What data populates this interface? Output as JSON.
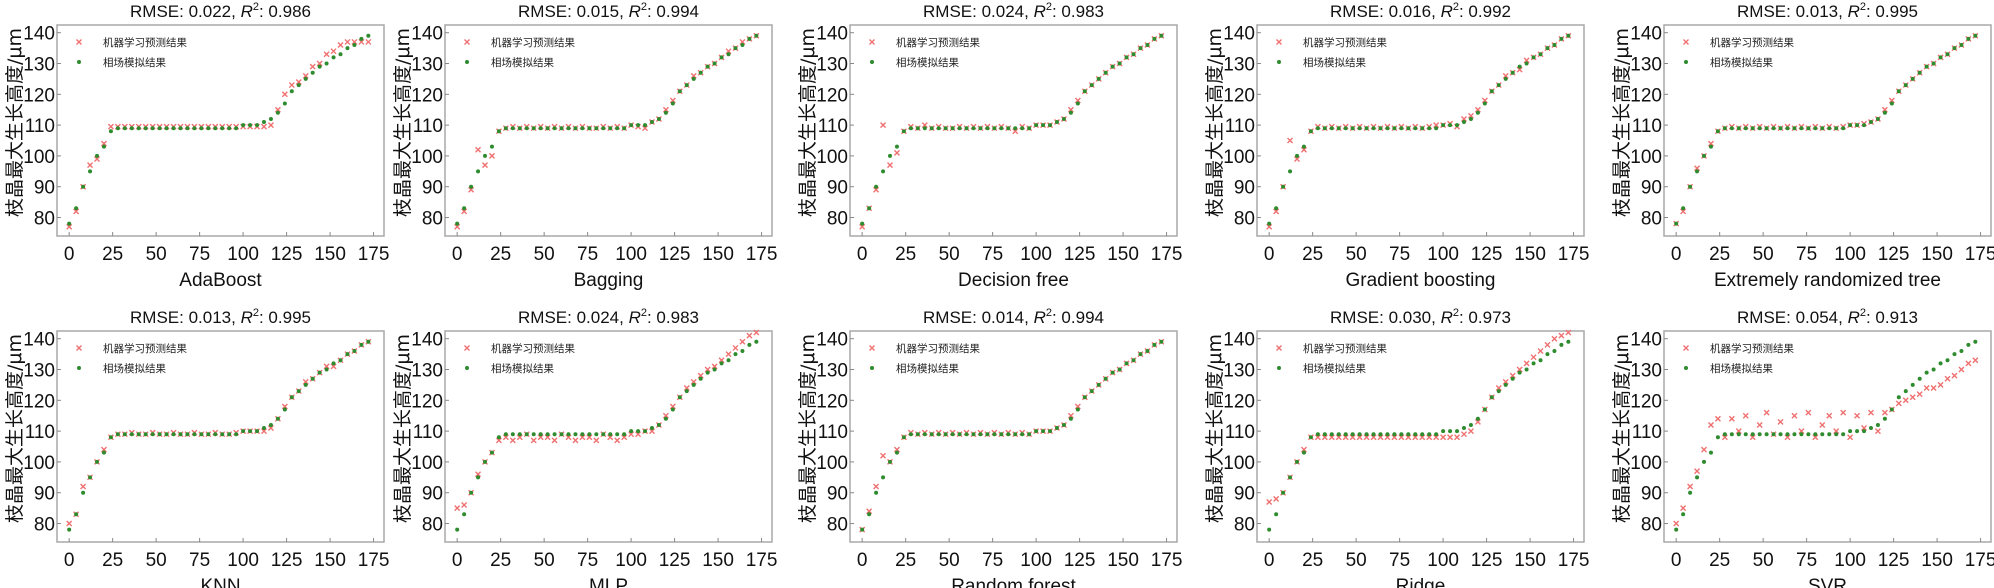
{
  "colors": {
    "prediction": "#f07070",
    "phase_field": "#2e8b2e",
    "frame": "#a8a8a8"
  },
  "chart_data": {
    "type": "scatter",
    "ylabel": "枝晶最大生长高度/μm",
    "legend": [
      "机器学习预测结果",
      "相场模拟结果"
    ],
    "legend_placement": "top-left",
    "xlim": [
      -7,
      181
    ],
    "ylim": [
      74,
      142.5
    ],
    "xticks": [
      "0",
      "25",
      "50",
      "75",
      "100",
      "125",
      "150",
      "175"
    ],
    "yticks": [
      "80",
      "90",
      "100",
      "110",
      "120",
      "130",
      "140"
    ],
    "x": [
      0,
      4,
      8,
      12,
      16,
      20,
      24,
      28,
      32,
      36,
      40,
      44,
      48,
      52,
      56,
      60,
      64,
      68,
      72,
      76,
      80,
      84,
      88,
      92,
      96,
      100,
      104,
      108,
      112,
      116,
      120,
      124,
      128,
      132,
      136,
      140,
      144,
      148,
      152,
      156,
      160,
      164,
      168,
      172
    ],
    "phase_field": [
      78,
      83,
      90,
      95,
      100,
      103,
      108,
      109,
      109,
      109,
      109,
      109,
      109,
      109,
      109,
      109,
      109,
      109,
      109,
      109,
      109,
      109,
      109,
      109,
      109,
      110,
      110,
      110,
      111,
      112,
      114,
      117,
      121,
      123,
      125,
      127,
      129,
      130,
      132,
      133,
      135,
      136,
      138,
      139
    ],
    "panels": [
      {
        "title": "RMSE: 0.022, R²: 0.986",
        "xlabel": "AdaBoost",
        "prediction": [
          77,
          82,
          90,
          97,
          99,
          104,
          109.5,
          109.5,
          109.5,
          109.5,
          109.5,
          109.5,
          109.5,
          109.5,
          109.5,
          109.5,
          109.5,
          109.5,
          109.5,
          109.5,
          109.5,
          109.5,
          109.5,
          109.5,
          109.5,
          109.5,
          109.5,
          109.5,
          109.5,
          110,
          115,
          120,
          123,
          124,
          126,
          129,
          130,
          133,
          134,
          136,
          137,
          137,
          137,
          137
        ]
      },
      {
        "title": "RMSE: 0.015, R²: 0.994",
        "xlabel": "Bagging",
        "prediction": [
          77,
          82,
          89,
          102,
          97,
          100,
          108,
          109,
          109.5,
          109,
          109.5,
          109,
          109.5,
          109,
          109.5,
          109,
          109.5,
          109,
          109.5,
          109,
          109,
          109.5,
          109,
          109.5,
          109,
          110,
          109.5,
          109,
          111,
          112,
          115,
          118,
          121,
          123,
          126,
          127,
          129,
          130,
          132,
          134,
          135,
          137,
          138,
          139
        ]
      },
      {
        "title": "RMSE: 0.024, R²: 0.983",
        "xlabel": "Decision free",
        "prediction": [
          77,
          83,
          89,
          110,
          97,
          101,
          108,
          109.5,
          109,
          110,
          109,
          109.5,
          109,
          109,
          109.5,
          109,
          109.5,
          109,
          109.5,
          109,
          109.5,
          109,
          108,
          109.5,
          109,
          110,
          110,
          110,
          111,
          112,
          115,
          118,
          121,
          123,
          125,
          127,
          129,
          130,
          132,
          133,
          135,
          136,
          138,
          139
        ]
      },
      {
        "title": "RMSE: 0.016, R²: 0.992",
        "xlabel": "Gradient boosting",
        "prediction": [
          77,
          82,
          90,
          105,
          99,
          102,
          108,
          109.5,
          109,
          109.5,
          109,
          109.5,
          109,
          109.5,
          109,
          109.5,
          109,
          109.5,
          109,
          109.5,
          109,
          109.5,
          109,
          109.5,
          110,
          110,
          110.5,
          109.5,
          112,
          113,
          115,
          118,
          121,
          123,
          126,
          127,
          128,
          131,
          132,
          133,
          135,
          136,
          138,
          139
        ]
      },
      {
        "title": "RMSE: 0.013, R²: 0.995",
        "xlabel": "Extremely randomized tree",
        "prediction": [
          78,
          82,
          90,
          96,
          100,
          104,
          108,
          109,
          109.5,
          109,
          109.5,
          109,
          109.5,
          109,
          109.5,
          109,
          109.5,
          109,
          109.5,
          109,
          109.5,
          109,
          109.5,
          109,
          109.5,
          110,
          110,
          110.5,
          111,
          112,
          115,
          118,
          121,
          123,
          125,
          127,
          129,
          130,
          132,
          133,
          135,
          136,
          138,
          139
        ]
      },
      {
        "title": "RMSE: 0.013, R²: 0.995",
        "xlabel": "KNN",
        "prediction": [
          80,
          83,
          92,
          95,
          100,
          104,
          108,
          109,
          109,
          109.5,
          109,
          109,
          109.5,
          109,
          109,
          109.5,
          109,
          109,
          109.5,
          109,
          109,
          109.5,
          109,
          109,
          109.5,
          110,
          110,
          110,
          110,
          111,
          114,
          118,
          121,
          123,
          126,
          127,
          129,
          131,
          131,
          133,
          135,
          136,
          138,
          139
        ]
      },
      {
        "title": "RMSE: 0.024, R²: 0.983",
        "xlabel": "MLP",
        "prediction": [
          85,
          86,
          90,
          96,
          100,
          103,
          107,
          108,
          107,
          108,
          109,
          107,
          108,
          108,
          107,
          109,
          108,
          107,
          108,
          108,
          107,
          109,
          108,
          107,
          108,
          109,
          109,
          110,
          110,
          112,
          115,
          118,
          121,
          124,
          126,
          128,
          130,
          131,
          133,
          135,
          137,
          139,
          141,
          142
        ]
      },
      {
        "title": "RMSE: 0.014, R²: 0.994",
        "xlabel": "Random forest",
        "prediction": [
          78,
          84,
          92,
          102,
          100,
          104,
          108,
          109.5,
          109,
          109.5,
          109,
          109.5,
          109,
          109.5,
          109,
          109.5,
          109,
          109.5,
          109,
          109.5,
          109,
          109.5,
          109,
          109.5,
          109,
          110,
          110,
          110,
          111,
          112,
          115,
          118,
          121,
          123,
          125,
          127,
          129,
          130,
          132,
          133,
          135,
          136,
          138,
          139
        ]
      },
      {
        "title": "RMSE: 0.030, R²: 0.973",
        "xlabel": "Ridge",
        "prediction": [
          87,
          88,
          90,
          95,
          100,
          104,
          108,
          108,
          108,
          108,
          108,
          108,
          108,
          108,
          108,
          108,
          108,
          108,
          108,
          108,
          108,
          108,
          108,
          108,
          108,
          108,
          108,
          108,
          109,
          110,
          113,
          117,
          121,
          124,
          126,
          128,
          130,
          132,
          134,
          136,
          138,
          140,
          141,
          142
        ]
      },
      {
        "title": "RMSE: 0.054, R²: 0.913",
        "xlabel": "SVR",
        "prediction": [
          80,
          85,
          92,
          97,
          104,
          112,
          114,
          108,
          114,
          110,
          115,
          108,
          112,
          116,
          109,
          113,
          108,
          115,
          110,
          116,
          108,
          112,
          115,
          110,
          116,
          108,
          115,
          111,
          116,
          110,
          116,
          117,
          119,
          120,
          121,
          122,
          124,
          124,
          125,
          127,
          128,
          130,
          132,
          133
        ]
      }
    ]
  }
}
